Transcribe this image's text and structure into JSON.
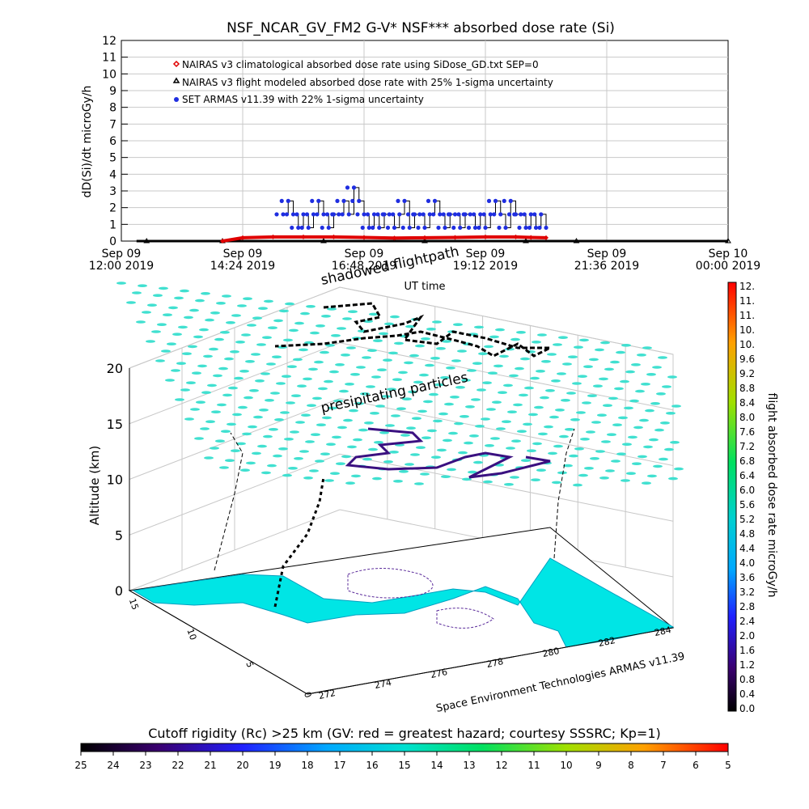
{
  "colors": {
    "nairas_clim": "#e00000",
    "nairas_flight": "#000000",
    "armas": "#1f2ee0",
    "grid": "#c8c8c8",
    "particles": "#40e0d0",
    "land": "#00e5e5"
  },
  "chart_data": [
    {
      "type": "scatter",
      "title": "NSF_NCAR_GV_FM2 G-V* NSF*** absorbed dose rate (Si)",
      "ylabel": "dD(Si)/dt microGy/h",
      "xlabel": "UT time",
      "ylim": [
        0,
        12
      ],
      "yticks": [
        "0",
        "1",
        "2",
        "3",
        "4",
        "5",
        "6",
        "7",
        "8",
        "9",
        "10",
        "11",
        "12"
      ],
      "xticks": [
        {
          "day": "Sep 09",
          "time": "12:00 2019",
          "hours": 0
        },
        {
          "day": "Sep 09",
          "time": "14:24 2019",
          "hours": 2.4
        },
        {
          "day": "Sep 09",
          "time": "16:48 2019",
          "hours": 4.8
        },
        {
          "day": "Sep 09",
          "time": "19:12 2019",
          "hours": 7.2
        },
        {
          "day": "Sep 09",
          "time": "21:36 2019",
          "hours": 9.6
        },
        {
          "day": "Sep 10",
          "time": "00:00 2019",
          "hours": 12
        }
      ],
      "xlim_hours": [
        0,
        12
      ],
      "grid": true,
      "legend_position": "top-left",
      "series": [
        {
          "name": "NAIRAS v3 climatological absorbed dose rate using SiDose_GD.txt SEP=0",
          "marker": "diamond",
          "color": "#e00000",
          "x": [
            2.0,
            2.4,
            3.0,
            3.6,
            4.2,
            4.8,
            5.4,
            6.0,
            6.6,
            7.2,
            7.8,
            8.1,
            8.4
          ],
          "y": [
            0.0,
            0.2,
            0.25,
            0.25,
            0.25,
            0.22,
            0.18,
            0.2,
            0.22,
            0.25,
            0.25,
            0.22,
            0.2
          ]
        },
        {
          "name": "NAIRAS v3 flight modeled absorbed dose rate with 25% 1-sigma uncertainty",
          "marker": "triangle",
          "color": "#000000",
          "x": [
            0.5,
            2.0,
            4.0,
            6.0,
            8.0,
            9.0,
            12.0
          ],
          "y": [
            0.0,
            0.0,
            0.0,
            0.0,
            0.0,
            0.0,
            0.0
          ]
        },
        {
          "name": "SET ARMAS v11.39 with 22% 1-sigma uncertainty",
          "marker": "circle",
          "color": "#1f2ee0",
          "x": [
            3.2,
            3.3,
            3.4,
            3.5,
            3.6,
            3.7,
            3.8,
            3.9,
            4.0,
            4.1,
            4.2,
            4.3,
            4.4,
            4.5,
            4.6,
            4.7,
            4.8,
            4.9,
            5.0,
            5.1,
            5.2,
            5.3,
            5.4,
            5.5,
            5.6,
            5.7,
            5.8,
            5.9,
            6.0,
            6.1,
            6.2,
            6.3,
            6.4,
            6.5,
            6.6,
            6.7,
            6.8,
            6.9,
            7.0,
            7.1,
            7.2,
            7.3,
            7.4,
            7.5,
            7.6,
            7.7,
            7.8,
            7.9,
            8.0,
            8.1,
            8.2,
            8.3,
            8.4
          ],
          "y": [
            1.6,
            2.4,
            1.6,
            0.8,
            1.6,
            0.8,
            1.6,
            2.4,
            1.6,
            0.8,
            1.6,
            1.6,
            2.4,
            1.6,
            3.2,
            2.4,
            1.6,
            0.8,
            1.6,
            0.8,
            1.6,
            1.6,
            0.8,
            1.6,
            2.4,
            0.8,
            1.6,
            1.6,
            0.8,
            1.6,
            2.4,
            1.6,
            0.8,
            1.6,
            1.6,
            0.8,
            1.6,
            1.6,
            0.8,
            1.6,
            0.8,
            1.6,
            2.4,
            1.6,
            0.8,
            2.4,
            1.6,
            1.6,
            0.8,
            1.6,
            0.8,
            1.6,
            0.8
          ]
        }
      ]
    },
    {
      "type": "scatter",
      "title": "",
      "annotations": [
        "shadowed flightpath",
        "presipitating particles",
        "Space Environment Technologies ARMAS v11.39"
      ],
      "zlabel": "Altitude (km)",
      "zticks": [
        "0",
        "5",
        "10",
        "15",
        "20"
      ],
      "yticks": [
        "0",
        "5",
        "10",
        "15"
      ],
      "xticks": [
        "272",
        "274",
        "276",
        "278",
        "280",
        "282",
        "284"
      ],
      "colorbar": {
        "label": "flight absorbed dose rate microGy/h",
        "ticks": [
          "0.0",
          "0.4",
          "0.8",
          "1.2",
          "1.6",
          "2.0",
          "2.4",
          "2.8",
          "3.2",
          "3.6",
          "4.0",
          "4.4",
          "4.8",
          "5.2",
          "5.6",
          "6.0",
          "6.4",
          "6.8",
          "7.2",
          "7.6",
          "8.0",
          "8.4",
          "8.8",
          "9.2",
          "9.6",
          "10.",
          "10.",
          "11.",
          "11.",
          "12."
        ]
      }
    },
    {
      "type": "heatmap",
      "title": "Cutoff rigidity (Rc) >25 km (GV: red = greatest hazard; courtesy SSSRC; Kp=1)",
      "colorbar_ticks": [
        "25",
        "24",
        "23",
        "22",
        "21",
        "20",
        "19",
        "18",
        "17",
        "16",
        "15",
        "14",
        "13",
        "12",
        "11",
        "10",
        "9",
        "8",
        "7",
        "6",
        "5"
      ]
    }
  ]
}
